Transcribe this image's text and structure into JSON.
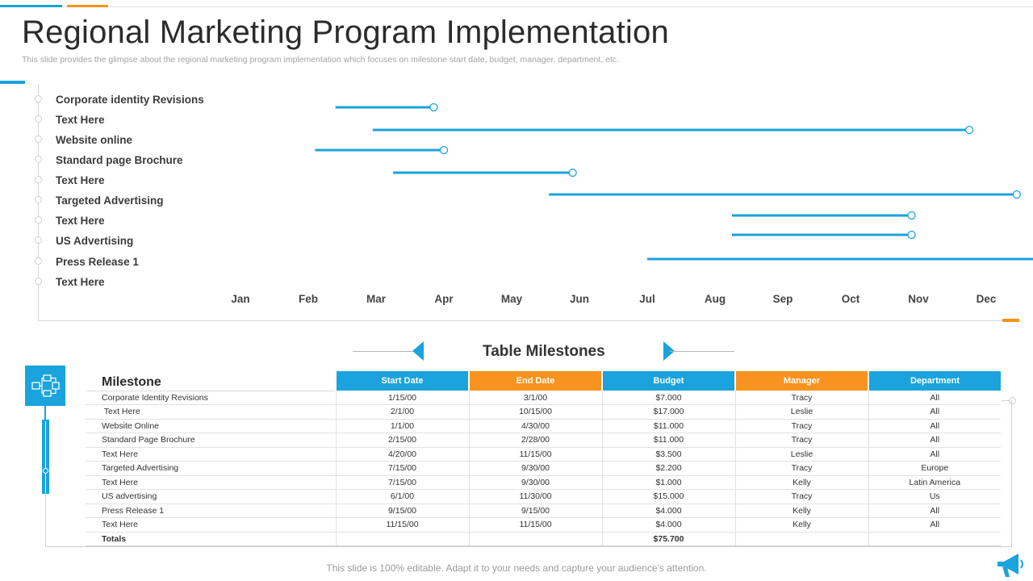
{
  "title": "Regional Marketing Program Implementation",
  "subtitle": "This slide provides the glimpse about the regional marketing program implementation  which focuses on milestone start date, budget, manager, department,  etc.",
  "colors": {
    "accent_blue": "#1aa3dc",
    "accent_orange": "#f7931e"
  },
  "chart_data": {
    "type": "gantt",
    "tasks": [
      "Corporate identity Revisions",
      "Text Here",
      "Website online",
      "Standard page Brochure",
      "Text Here",
      "Targeted Advertising",
      "Text Here",
      "US Advertising",
      "Press Release 1",
      "Text Here"
    ],
    "x_axis_months": [
      "Jan",
      "Feb",
      "Mar",
      "Apr",
      "May",
      "Jun",
      "Jul",
      "Aug",
      "Sep",
      "Oct",
      "Nov",
      "Dec"
    ],
    "bars": [
      {
        "start": 1.4,
        "end": 2.85
      },
      {
        "start": 1.95,
        "end": 10.75
      },
      {
        "start": 1.1,
        "end": 3.0
      },
      {
        "start": 2.25,
        "end": 4.9
      },
      {
        "start": 4.55,
        "end": 11.45
      },
      {
        "start": 7.25,
        "end": 9.9
      },
      {
        "start": 7.25,
        "end": 9.9
      },
      {
        "start": 6.0,
        "end": 11.95
      }
    ]
  },
  "table": {
    "heading": "Table Milestones",
    "columns": [
      "Milestone",
      "Start Date",
      "End Date",
      "Budget",
      "Manager",
      "Department"
    ],
    "rows": [
      [
        "Corporate Identity Revisions",
        "1/15/00",
        "3/1/00",
        "$7.000",
        "Tracy",
        "All"
      ],
      [
        " Text Here",
        "2/1/00",
        "10/15/00",
        "$17.000",
        "Leslie",
        "All"
      ],
      [
        "Website Online",
        "1/1/00",
        "4/30/00",
        "$11.000",
        "Tracy",
        "All"
      ],
      [
        "Standard Page Brochure",
        "2/15/00",
        "2/28/00",
        "$11.000",
        "Tracy",
        "All"
      ],
      [
        "Text Here",
        "4/20/00",
        "11/15/00",
        "$3.500",
        "Leslie",
        "All"
      ],
      [
        "Targeted Advertising",
        "7/15/00",
        "9/30/00",
        "$2.200",
        "Tracy",
        "Europe"
      ],
      [
        "Text Here",
        "7/15/00",
        "9/30/00",
        "$1.000",
        "Kelly",
        "Latin America"
      ],
      [
        "US advertising",
        "6/1/00",
        "11/30/00",
        "$15.000",
        "Tracy",
        "Us"
      ],
      [
        "Press Release 1",
        "9/15/00",
        "9/15/00",
        "$4.000",
        "Kelly",
        "All"
      ],
      [
        "Text Here",
        "11/15/00",
        "11/15/00",
        "$4.000",
        "Kelly",
        "All"
      ]
    ],
    "totals_label": "Totals",
    "totals_budget": "$75.700"
  },
  "footer": "This slide is 100% editable. Adapt it to your needs and capture your audience's attention.",
  "icons": {
    "flowchart": "flowchart-icon",
    "megaphone": "megaphone-icon"
  }
}
